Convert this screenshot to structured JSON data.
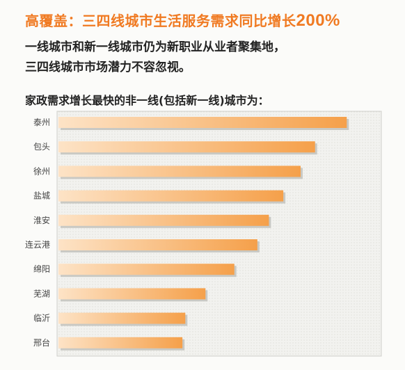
{
  "headline": {
    "text": "高覆盖：三四线城市生活服务需求同比增长",
    "highlight": "200%"
  },
  "subtitle": {
    "line1": "一线城市和新一线城市仍为新职业从业者聚集地，",
    "line2": "三四线城市市场潜力不容忽视。"
  },
  "colors": {
    "accent": "#f07a22",
    "bar_light": "#fde3c6",
    "bar_dark": "#f5a04a",
    "panel": "#eeeeeb"
  },
  "chart_data": {
    "type": "bar",
    "orientation": "horizontal",
    "title": "家政需求增长最快的非一线(包括新一线)城市为：",
    "categories": [
      "泰州",
      "包头",
      "徐州",
      "盐城",
      "淮安",
      "连云港",
      "绵阳",
      "芜湖",
      "临沂",
      "邢台"
    ],
    "values": [
      100,
      89,
      84,
      78,
      73,
      69,
      61,
      51,
      44,
      43
    ],
    "xlim": [
      0,
      112
    ],
    "xlabel": "",
    "ylabel": "",
    "grid": false,
    "legend": "none"
  }
}
